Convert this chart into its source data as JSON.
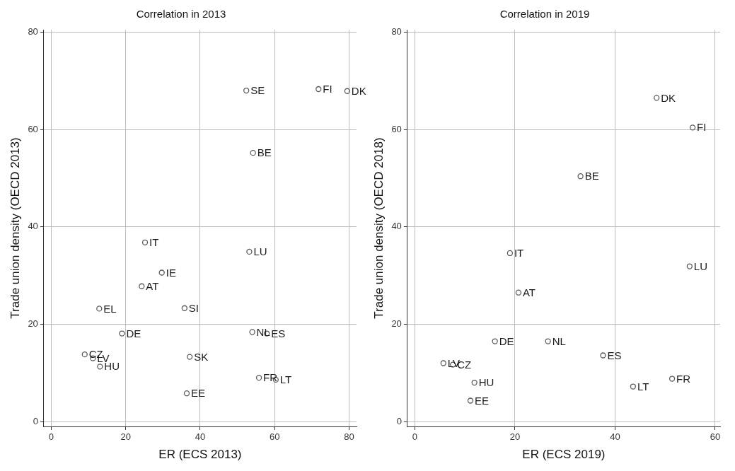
{
  "chart_data": [
    {
      "type": "scatter",
      "title": "Correlation in 2013",
      "xlabel": "ER (ECS 2013)",
      "ylabel": "Trade union density (OECD 2013)",
      "series": [
        {
          "color": "#595959",
          "x": [
            52.4,
            71.8,
            79.5,
            54.2,
            25.2,
            53.2,
            29.7,
            24.3,
            12.9,
            35.8,
            19.0,
            54.0,
            57.9,
            9.0,
            11.2,
            13.1,
            37.2,
            55.8,
            60.3,
            36.4
          ],
          "values": [
            68.0,
            68.3,
            67.9,
            55.2,
            36.8,
            34.9,
            30.6,
            27.8,
            23.2,
            23.3,
            18.1,
            18.4,
            18.1,
            13.8,
            13.0,
            11.3,
            13.3,
            9.0,
            8.6,
            5.8
          ]
        }
      ],
      "annotations": [
        {
          "text": "SE",
          "x": 52.4,
          "y": 68.0
        },
        {
          "text": "FI",
          "x": 71.8,
          "y": 68.3
        },
        {
          "text": "DK",
          "x": 79.5,
          "y": 67.9
        },
        {
          "text": "BE",
          "x": 54.2,
          "y": 55.2
        },
        {
          "text": "IT",
          "x": 25.2,
          "y": 36.8
        },
        {
          "text": "LU",
          "x": 53.2,
          "y": 34.9
        },
        {
          "text": "IE",
          "x": 29.7,
          "y": 30.6
        },
        {
          "text": "AT",
          "x": 24.3,
          "y": 27.8
        },
        {
          "text": "EL",
          "x": 12.9,
          "y": 23.2
        },
        {
          "text": "SI",
          "x": 35.8,
          "y": 23.3
        },
        {
          "text": "DE",
          "x": 19.0,
          "y": 18.1
        },
        {
          "text": "NL",
          "x": 54.0,
          "y": 18.4
        },
        {
          "text": "ES",
          "x": 57.9,
          "y": 18.1
        },
        {
          "text": "CZ",
          "x": 9.0,
          "y": 13.8
        },
        {
          "text": "LV",
          "x": 11.2,
          "y": 13.0
        },
        {
          "text": "HU",
          "x": 13.1,
          "y": 11.3
        },
        {
          "text": "SK",
          "x": 37.2,
          "y": 13.3
        },
        {
          "text": "FR",
          "x": 55.8,
          "y": 9.0
        },
        {
          "text": "LT",
          "x": 60.3,
          "y": 8.6
        },
        {
          "text": "EE",
          "x": 36.4,
          "y": 5.8
        }
      ],
      "xlim": [
        -2,
        82
      ],
      "ylim": [
        -1,
        80.5
      ],
      "xticks": [
        0,
        20,
        40,
        60,
        80
      ],
      "yticks": [
        0,
        20,
        40,
        60,
        80
      ],
      "grid": true,
      "marker": "circle",
      "legend": false
    },
    {
      "type": "scatter",
      "title": "Correlation in 2019",
      "xlabel": "ER (ECS 2019)",
      "ylabel": "Trade union density (OECD 2018)",
      "series": [
        {
          "color": "#595959",
          "x": [
            48.3,
            55.5,
            33.1,
            19.0,
            54.9,
            20.7,
            16.0,
            26.6,
            37.6,
            5.7,
            7.6,
            11.9,
            11.1,
            43.6,
            51.4
          ],
          "values": [
            66.5,
            60.4,
            50.4,
            34.6,
            31.9,
            26.5,
            16.5,
            16.5,
            13.6,
            12.0,
            11.7,
            8.0,
            4.3,
            7.2,
            8.8
          ]
        }
      ],
      "annotations": [
        {
          "text": "DK",
          "x": 48.3,
          "y": 66.5
        },
        {
          "text": "FI",
          "x": 55.5,
          "y": 60.4
        },
        {
          "text": "BE",
          "x": 33.1,
          "y": 50.4
        },
        {
          "text": "IT",
          "x": 19.0,
          "y": 34.6
        },
        {
          "text": "LU",
          "x": 54.9,
          "y": 31.9
        },
        {
          "text": "AT",
          "x": 20.7,
          "y": 26.5
        },
        {
          "text": "DE",
          "x": 16.0,
          "y": 16.5
        },
        {
          "text": "NL",
          "x": 26.6,
          "y": 16.5
        },
        {
          "text": "ES",
          "x": 37.6,
          "y": 13.6
        },
        {
          "text": "LV",
          "x": 5.7,
          "y": 12.0
        },
        {
          "text": "CZ",
          "x": 7.6,
          "y": 11.7
        },
        {
          "text": "HU",
          "x": 11.9,
          "y": 8.0
        },
        {
          "text": "EE",
          "x": 11.1,
          "y": 4.3
        },
        {
          "text": "LT",
          "x": 43.6,
          "y": 7.2
        },
        {
          "text": "FR",
          "x": 51.4,
          "y": 8.8
        }
      ],
      "xlim": [
        -1.5,
        61
      ],
      "ylim": [
        -1,
        80.5
      ],
      "xticks": [
        0,
        20,
        40,
        60
      ],
      "yticks": [
        0,
        20,
        40,
        60,
        80
      ],
      "grid": true,
      "marker": "circle",
      "legend": false
    }
  ]
}
